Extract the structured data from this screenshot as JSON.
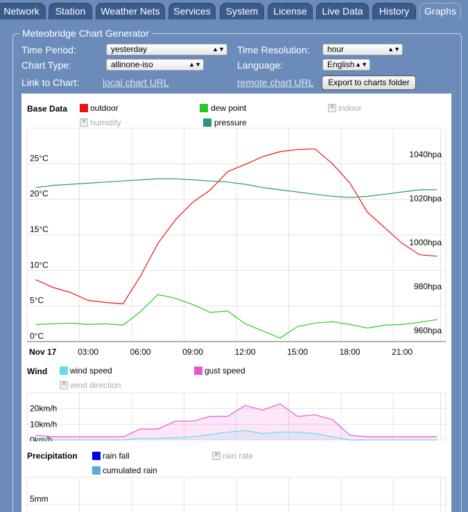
{
  "tabs": [
    {
      "label": "Network"
    },
    {
      "label": "Station"
    },
    {
      "label": "Weather Nets"
    },
    {
      "label": "Services"
    },
    {
      "label": "System"
    },
    {
      "label": "License"
    },
    {
      "label": "Live Data"
    },
    {
      "label": "History"
    },
    {
      "label": "Graphs",
      "active": true
    }
  ],
  "panel": {
    "title": "Meteobridge Chart Generator",
    "time_period_label": "Time Period:",
    "time_period_value": "yesterday",
    "time_resolution_label": "Time Resolution:",
    "time_resolution_value": "hour",
    "chart_type_label": "Chart Type:",
    "chart_type_value": "allinone-iso",
    "language_label": "Language:",
    "language_value": "English",
    "link_label": "Link to Chart:",
    "local_link": "local chart URL",
    "remote_link": "remote chart URL",
    "export_button": "Export to charts folder"
  },
  "chart_data": [
    {
      "type": "line",
      "section": "Base Data",
      "legend": [
        {
          "name": "outdoor",
          "color": "#ee1111",
          "active": true
        },
        {
          "name": "dew point",
          "color": "#22cc22",
          "active": true
        },
        {
          "name": "indoor",
          "active": false
        },
        {
          "name": "humidity",
          "active": false
        },
        {
          "name": "pressure",
          "color": "#2a9580",
          "active": true
        }
      ],
      "x_tick_labels": [
        "Nov 17",
        "03:00",
        "06:00",
        "09:00",
        "12:00",
        "15:00",
        "18:00",
        "21:00"
      ],
      "y_left_ticks": [
        "25°C",
        "20°C",
        "15°C",
        "10°C",
        "5°C",
        "0°C"
      ],
      "y_right_ticks": [
        "1040hpa",
        "1020hpa",
        "1000hpa",
        "980hpa",
        "960hpa"
      ],
      "x_hours": [
        0,
        1,
        2,
        3,
        4,
        5,
        6,
        7,
        8,
        9,
        10,
        11,
        12,
        13,
        14,
        15,
        16,
        17,
        18,
        19,
        20,
        21,
        22,
        23
      ],
      "series": [
        {
          "name": "outdoor",
          "color": "#ee1111",
          "unit": "°C",
          "values": [
            8.7,
            7.6,
            6.9,
            5.8,
            5.5,
            5.3,
            9.2,
            13.8,
            17.1,
            19.6,
            21.3,
            23.9,
            24.9,
            26.0,
            26.7,
            27.0,
            27.1,
            25.0,
            22.3,
            18.2,
            16.0,
            13.8,
            12.2,
            12.0
          ]
        },
        {
          "name": "dew point",
          "color": "#22cc22",
          "unit": "°C",
          "values": [
            2.4,
            2.5,
            2.6,
            2.4,
            2.5,
            2.3,
            4.2,
            6.6,
            6.1,
            5.2,
            4.1,
            4.3,
            2.5,
            1.5,
            0.5,
            2.1,
            2.6,
            2.8,
            2.4,
            1.9,
            2.3,
            2.4,
            2.7,
            3.1
          ]
        },
        {
          "name": "pressure",
          "color": "#2a9580",
          "unit": "hpa",
          "values": [
            1025,
            1026,
            1026.5,
            1027,
            1027.5,
            1028,
            1028.5,
            1029,
            1029,
            1028.5,
            1028,
            1027.5,
            1026.5,
            1025,
            1024,
            1023,
            1022,
            1021,
            1020.5,
            1021,
            1022,
            1023,
            1024,
            1024
          ]
        }
      ],
      "ylim_temp": [
        0,
        30
      ],
      "ylim_pressure": [
        955,
        1052
      ]
    },
    {
      "type": "area",
      "section": "Wind",
      "legend": [
        {
          "name": "wind speed",
          "color": "#66ddee",
          "active": true
        },
        {
          "name": "gust speed",
          "color": "#ee55cc",
          "active": true
        },
        {
          "name": "wind direction",
          "active": false
        }
      ],
      "y_ticks": [
        "20km/h",
        "10km/h",
        "0km/h"
      ],
      "x_hours": [
        0,
        1,
        2,
        3,
        4,
        5,
        6,
        7,
        8,
        9,
        10,
        11,
        12,
        13,
        14,
        15,
        16,
        17,
        18,
        19,
        20,
        21,
        22,
        23
      ],
      "series": [
        {
          "name": "gust speed",
          "color": "#ee55cc",
          "values": [
            3,
            2,
            2,
            2,
            2,
            2,
            7,
            7,
            12,
            12,
            15,
            15,
            22,
            19,
            23,
            15,
            16,
            13,
            3,
            2,
            2,
            2,
            2,
            2
          ]
        },
        {
          "name": "wind speed",
          "color": "#66ddee",
          "values": [
            0,
            0,
            0,
            0,
            0,
            0,
            1,
            1,
            1.5,
            2,
            3.5,
            5,
            6,
            4,
            5,
            5,
            4,
            2,
            0,
            0,
            0,
            0,
            0,
            0
          ]
        }
      ],
      "ylim": [
        0,
        30
      ]
    },
    {
      "type": "bar",
      "section": "Precipitation",
      "legend": [
        {
          "name": "rain fall",
          "color": "#0000dd",
          "active": true
        },
        {
          "name": "rain rate",
          "active": false
        },
        {
          "name": "cumulated rain",
          "color": "#55aadd",
          "active": true
        }
      ],
      "y_ticks": [
        "5mm"
      ]
    }
  ]
}
